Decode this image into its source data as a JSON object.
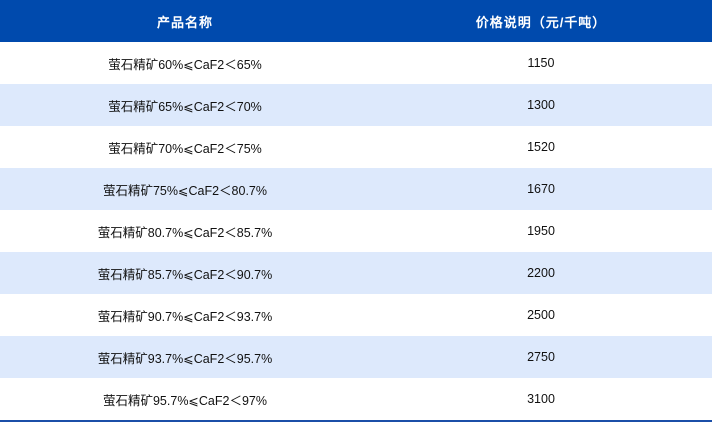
{
  "table": {
    "headers": [
      "产品名称",
      "价格说明（元/千吨）"
    ],
    "rows": [
      {
        "product": "萤石精矿60%⩽CaF2＜65%",
        "price": "1150"
      },
      {
        "product": "萤石精矿65%⩽CaF2＜70%",
        "price": "1300"
      },
      {
        "product": "萤石精矿70%⩽CaF2＜75%",
        "price": "1520"
      },
      {
        "product": "萤石精矿75%⩽CaF2＜80.7%",
        "price": "1670"
      },
      {
        "product": "萤石精矿80.7%⩽CaF2＜85.7%",
        "price": "1950"
      },
      {
        "product": "萤石精矿85.7%⩽CaF2＜90.7%",
        "price": "2200"
      },
      {
        "product": "萤石精矿90.7%⩽CaF2＜93.7%",
        "price": "2500"
      },
      {
        "product": "萤石精矿93.7%⩽CaF2＜95.7%",
        "price": "2750"
      },
      {
        "product": "萤石精矿95.7%⩽CaF2＜97%",
        "price": "3100"
      }
    ]
  },
  "colors": {
    "header_bg": "#004aad",
    "alt_row_bg": "#dde9fc"
  }
}
